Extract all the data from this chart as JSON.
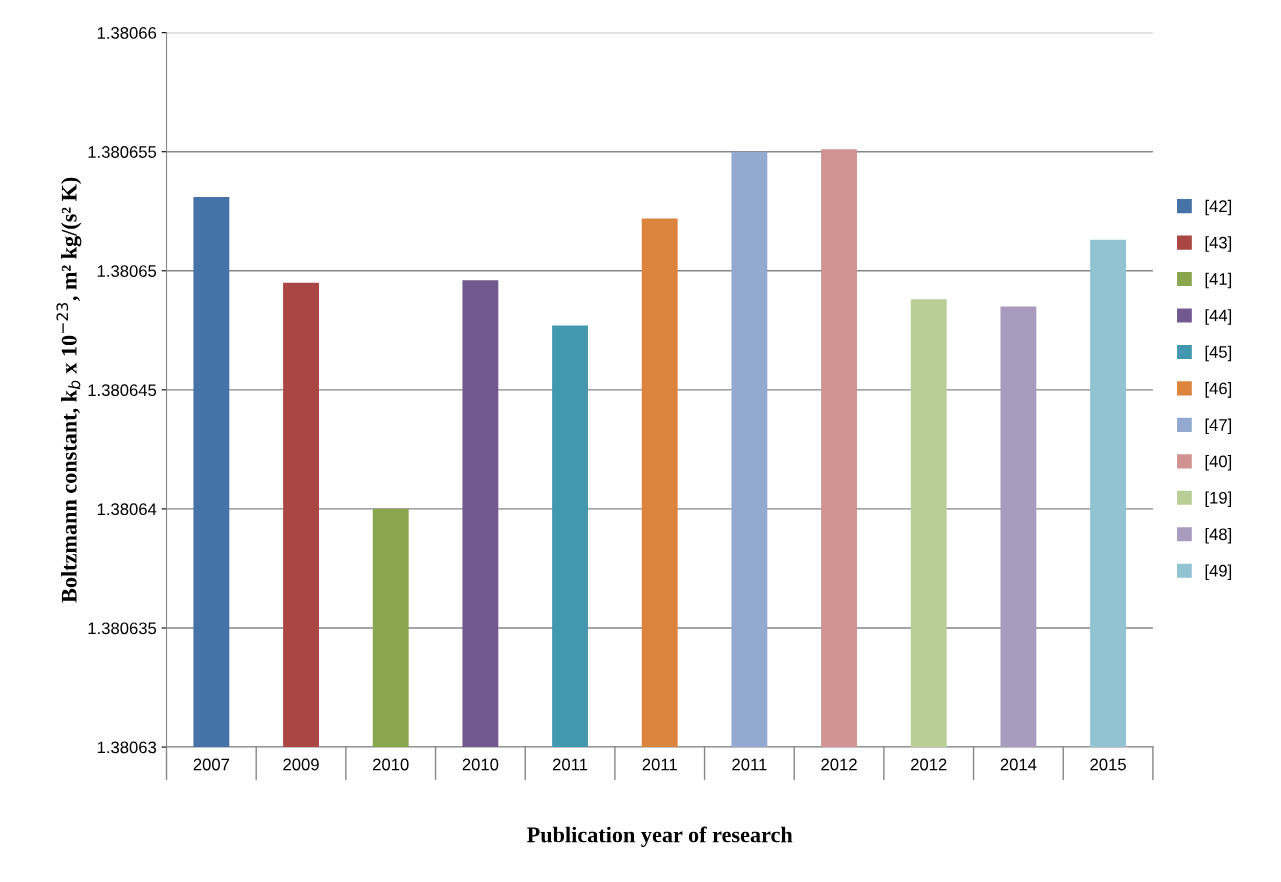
{
  "chart_data": {
    "type": "bar",
    "xlabel": "Publication year of research",
    "ylabel": "Boltzmann constant, k$_{b}$ x 10$^{−23}$, m² kg/(s² K)",
    "categories": [
      "2007",
      "2009",
      "2010",
      "2010",
      "2011",
      "2011",
      "2011",
      "2012",
      "2012",
      "2014",
      "2015"
    ],
    "series": [
      {
        "name": "[42]",
        "color": "#4572a7",
        "values": [
          1.3806531,
          null,
          null,
          null,
          null,
          null,
          null,
          null,
          null,
          null,
          null
        ]
      },
      {
        "name": "[43]",
        "color": "#aa4643",
        "values": [
          null,
          1.3806495,
          null,
          null,
          null,
          null,
          null,
          null,
          null,
          null,
          null
        ]
      },
      {
        "name": "[41]",
        "color": "#89a54e",
        "values": [
          null,
          null,
          1.38064,
          null,
          null,
          null,
          null,
          null,
          null,
          null,
          null
        ]
      },
      {
        "name": "[44]",
        "color": "#71588f",
        "values": [
          null,
          null,
          null,
          1.3806496,
          null,
          null,
          null,
          null,
          null,
          null,
          null
        ]
      },
      {
        "name": "[45]",
        "color": "#4198af",
        "values": [
          null,
          null,
          null,
          null,
          1.3806477,
          null,
          null,
          null,
          null,
          null,
          null
        ]
      },
      {
        "name": "[46]",
        "color": "#db843d",
        "values": [
          null,
          null,
          null,
          null,
          null,
          1.3806522,
          null,
          null,
          null,
          null,
          null
        ]
      },
      {
        "name": "[47]",
        "color": "#93a9cf",
        "values": [
          null,
          null,
          null,
          null,
          null,
          null,
          1.380655,
          null,
          null,
          null,
          null
        ]
      },
      {
        "name": "[40]",
        "color": "#d19392",
        "values": [
          null,
          null,
          null,
          null,
          null,
          null,
          null,
          1.3806551,
          null,
          null,
          null
        ]
      },
      {
        "name": "[19]",
        "color": "#b9cd96",
        "values": [
          null,
          null,
          null,
          null,
          null,
          null,
          null,
          null,
          1.3806488,
          null,
          null
        ]
      },
      {
        "name": "[48]",
        "color": "#a99bbd",
        "values": [
          null,
          null,
          null,
          null,
          null,
          null,
          null,
          null,
          null,
          1.3806485,
          null
        ]
      },
      {
        "name": "[49]",
        "color": "#92c3d3",
        "values": [
          null,
          null,
          null,
          null,
          null,
          null,
          null,
          null,
          null,
          null,
          1.3806513
        ]
      }
    ],
    "ylim": [
      1.38063,
      1.38066
    ],
    "yticks": [
      1.38063,
      1.380635,
      1.38064,
      1.380645,
      1.38065,
      1.380655,
      1.38066
    ],
    "grid": "y",
    "legend": "right"
  }
}
